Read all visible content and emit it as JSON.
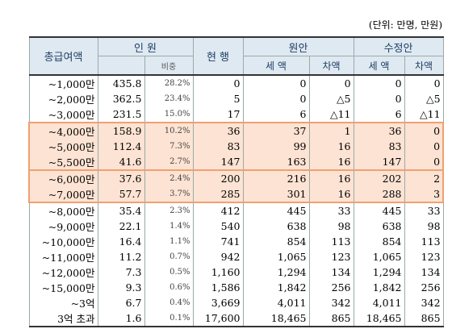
{
  "unit": "(단위: 만명, 만원)",
  "header": {
    "group": [
      "총급여액",
      "인 원",
      "현 행",
      "원안",
      "수정안"
    ],
    "sub": [
      "비중",
      "세 액",
      "차액",
      "세 액",
      "차액"
    ]
  },
  "table": {
    "rows": [
      [
        "~1,000만",
        "435.8",
        "28.2%",
        "0",
        "0",
        "0",
        "0",
        "0"
      ],
      [
        "~2,000만",
        "362.5",
        "23.4%",
        "5",
        "0",
        "△5",
        "0",
        "△5"
      ],
      [
        "~3,000만",
        "231.5",
        "15.0%",
        "17",
        "6",
        "△11",
        "6",
        "△11"
      ],
      [
        "~4,000만",
        "158.9",
        "10.2%",
        "36",
        "37",
        "1",
        "36",
        "0"
      ],
      [
        "~5,000만",
        "112.4",
        "7.3%",
        "83",
        "99",
        "16",
        "83",
        "0"
      ],
      [
        "~5,500만",
        "41.6",
        "2.7%",
        "147",
        "163",
        "16",
        "147",
        "0"
      ],
      [
        "~6,000만",
        "37.6",
        "2.4%",
        "200",
        "216",
        "16",
        "202",
        "2"
      ],
      [
        "~7,000만",
        "57.7",
        "3.7%",
        "285",
        "301",
        "16",
        "288",
        "3"
      ],
      [
        "~8,000만",
        "35.4",
        "2.3%",
        "412",
        "445",
        "33",
        "445",
        "33"
      ],
      [
        "~9,000만",
        "22.1",
        "1.4%",
        "540",
        "638",
        "98",
        "638",
        "98"
      ],
      [
        "~10,000만",
        "16.4",
        "1.1%",
        "741",
        "854",
        "113",
        "854",
        "113"
      ],
      [
        "~11,000만",
        "11.2",
        "0.7%",
        "942",
        "1,065",
        "123",
        "1,065",
        "123"
      ],
      [
        "~12,000만",
        "7.3",
        "0.5%",
        "1,160",
        "1,294",
        "134",
        "1,294",
        "134"
      ],
      [
        "~15,000만",
        "9.3",
        "0.6%",
        "1,586",
        "1,842",
        "256",
        "1,842",
        "256"
      ],
      [
        "~3억",
        "6.7",
        "0.4%",
        "3,669",
        "4,011",
        "342",
        "4,011",
        "342"
      ],
      [
        "3억 초과",
        "1.6",
        "0.1%",
        "17,600",
        "18,465",
        "865",
        "18,465",
        "865"
      ]
    ]
  }
}
